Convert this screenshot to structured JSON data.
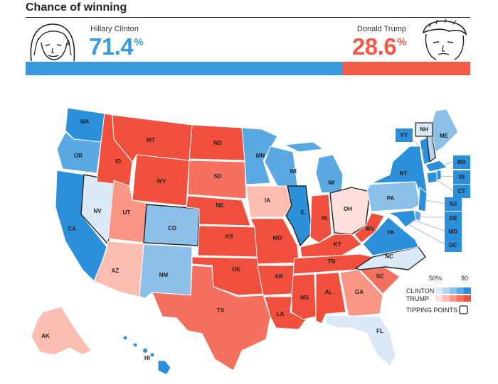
{
  "header": {
    "title": "Chance of winning"
  },
  "clinton": {
    "name": "Hillary Clinton",
    "pct": "71.4",
    "pct_sign": "%",
    "share": 0.714,
    "color": "#3a9bdc"
  },
  "trump": {
    "name": "Donald Trump",
    "pct": "28.6",
    "pct_sign": "%",
    "share": 0.286,
    "color": "#f25a4a"
  },
  "legend": {
    "scale_low": "50%",
    "scale_high": "90",
    "clinton_label": "CLINTON",
    "trump_label": "TRUMP",
    "tipping_label": "TIPPING POINTS",
    "clinton_colors": [
      "#dbe9f7",
      "#b8d5ef",
      "#8cc0e8",
      "#5ba9e2",
      "#2b8fd9"
    ],
    "trump_colors": [
      "#fde0db",
      "#fbbcb2",
      "#f89584",
      "#f4705f",
      "#f04f3e"
    ]
  },
  "states": {
    "WA": "WA",
    "OR": "OR",
    "CA": "CA",
    "NV": "NV",
    "ID": "ID",
    "MT": "MT",
    "WY": "WY",
    "UT": "UT",
    "AZ": "AZ",
    "CO": "CO",
    "NM": "NM",
    "ND": "ND",
    "SD": "SD",
    "NE": "NE",
    "KS": "KS",
    "OK": "OK",
    "TX": "TX",
    "MN": "MN",
    "IA": "IA",
    "MO": "MO",
    "AR": "AR",
    "LA": "LA",
    "WI": "WI",
    "IL": "IL",
    "MI": "MI",
    "IN": "IN",
    "OH": "OH",
    "KY": "KY",
    "TN": "TN",
    "MS": "MS",
    "AL": "AL",
    "GA": "GA",
    "FL": "FL",
    "SC": "SC",
    "NC": "NC",
    "VA": "VA",
    "WV": "WV",
    "PA": "PA",
    "NY": "NY",
    "ME": "ME",
    "AK": "AK",
    "HI": "HI",
    "VT": "VT",
    "NH": "NH",
    "MA": "MA",
    "RI": "RI",
    "CT": "CT",
    "NJ": "NJ",
    "DE": "DE",
    "MD": "MD",
    "DC": "DC"
  }
}
